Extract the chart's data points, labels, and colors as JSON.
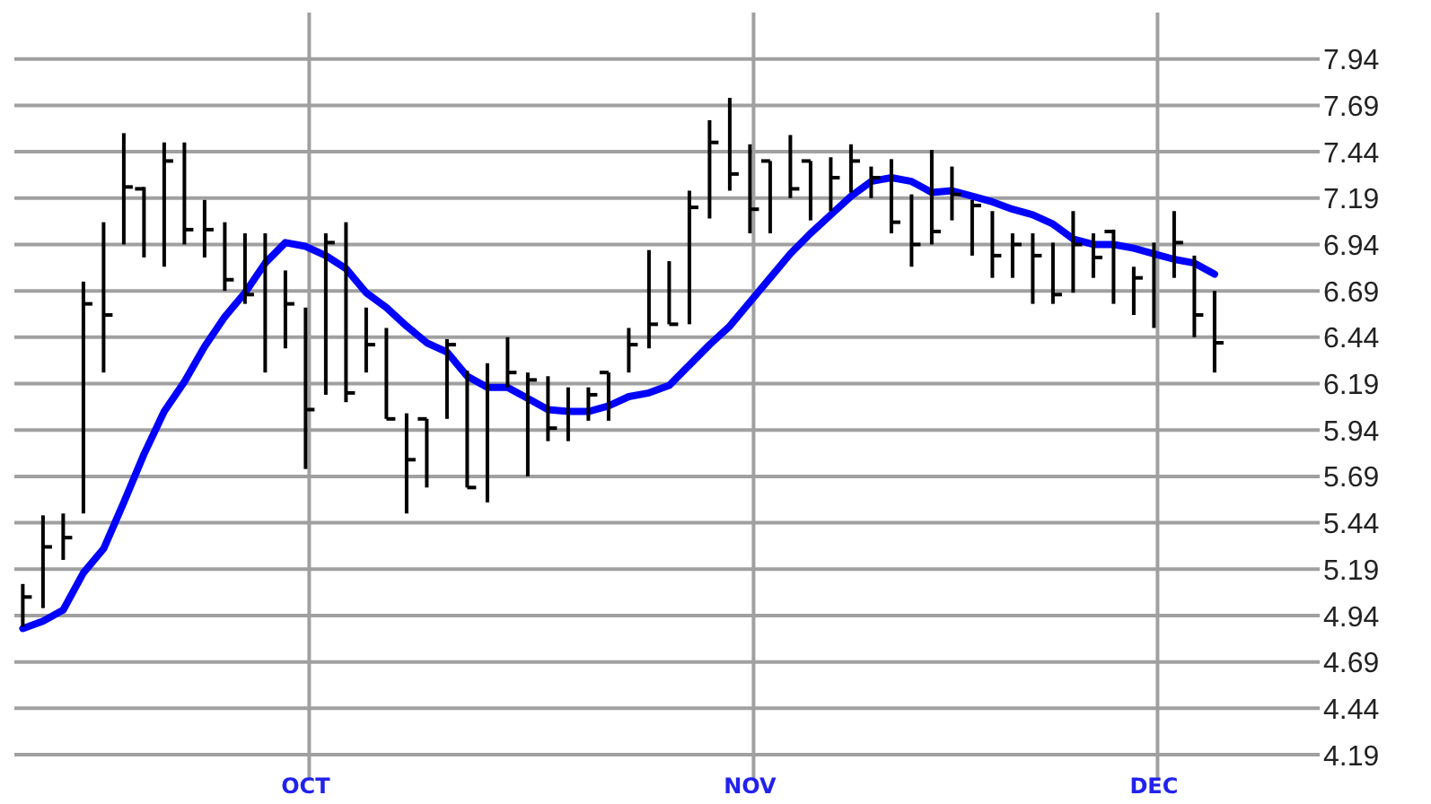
{
  "chart_data": {
    "type": "bar",
    "categories": [
      null,
      null,
      null,
      null,
      null,
      null,
      null,
      null,
      null,
      null,
      null,
      null,
      null,
      null,
      "OCT",
      null,
      null,
      null,
      null,
      null,
      null,
      null,
      null,
      null,
      null,
      null,
      null,
      null,
      null,
      null,
      null,
      null,
      null,
      null,
      null,
      null,
      "NOV",
      null,
      null,
      null,
      null,
      null,
      null,
      null,
      null,
      null,
      null,
      null,
      null,
      null,
      null,
      null,
      null,
      null,
      null,
      null,
      "DEC",
      null,
      null,
      null
    ],
    "series": [
      {
        "color": "#000000",
        "values": [
          0.23,
          0.5,
          0.25,
          1.25,
          0.81,
          0.6,
          0.38,
          0.67,
          0.55,
          0.31,
          0.37,
          0.38,
          0.75,
          0.42,
          0.87,
          0.87,
          0.97,
          0.35,
          0.49,
          0.54,
          0.37,
          0.43,
          0.63,
          0.75,
          0.27,
          0.56,
          0.35,
          0.29,
          0.18,
          0.26,
          0.24,
          0.53,
          0.34,
          0.72,
          0.53,
          0.5,
          0.48,
          0.39,
          0.34,
          0.32,
          0.29,
          0.26,
          0.17,
          0.4,
          0.39,
          0.51,
          0.29,
          0.3,
          0.36,
          0.24,
          0.38,
          0.33,
          0.44,
          0.24,
          0.4,
          0.26,
          0.46,
          0.36,
          0.44,
          0.44
        ],
        "base": [
          4.88,
          4.98,
          5.24,
          5.49,
          6.25,
          6.94,
          6.87,
          6.82,
          6.94,
          6.87,
          6.69,
          6.62,
          6.25,
          6.38,
          5.73,
          6.13,
          6.09,
          6.25,
          6.0,
          5.49,
          5.63,
          6.0,
          5.63,
          5.55,
          6.17,
          5.69,
          5.88,
          5.88,
          5.99,
          5.99,
          6.25,
          6.38,
          6.51,
          6.51,
          7.08,
          7.23,
          7.0,
          7.0,
          7.19,
          7.07,
          7.12,
          7.22,
          7.19,
          7.0,
          6.82,
          6.94,
          7.07,
          6.88,
          6.76,
          6.76,
          6.62,
          6.62,
          6.68,
          6.76,
          6.62,
          6.56,
          6.49,
          6.76,
          6.44,
          6.25
        ]
      },
      {
        "type": "scatter",
        "color": "#000000",
        "marker": "square",
        "values": [
          5.04,
          5.31,
          5.36,
          6.62,
          6.56,
          7.25,
          null,
          7.39,
          7.02,
          7.02,
          6.75,
          6.67,
          null,
          6.62,
          6.05,
          6.95,
          6.14,
          6.4,
          6.0,
          5.78,
          null,
          6.4,
          5.63,
          null,
          6.25,
          6.21,
          5.95,
          null,
          6.13,
          null,
          6.4,
          6.51,
          6.51,
          7.14,
          7.49,
          7.32,
          7.13,
          null,
          7.24,
          null,
          7.3,
          7.39,
          7.3,
          7.06,
          6.94,
          7.01,
          7.21,
          7.15,
          6.88,
          6.94,
          6.88,
          6.67,
          6.94,
          6.87,
          null,
          6.76,
          null,
          6.95,
          6.56,
          6.41
        ]
      },
      {
        "type": "scatter",
        "color": "#000000",
        "marker": "square",
        "values": [
          null,
          null,
          null,
          null,
          null,
          null,
          7.24,
          null,
          null,
          null,
          null,
          null,
          null,
          null,
          null,
          null,
          null,
          null,
          null,
          null,
          6.0,
          null,
          null,
          null,
          null,
          null,
          null,
          null,
          null,
          6.25,
          null,
          null,
          null,
          null,
          null,
          null,
          null,
          7.39,
          null,
          7.39,
          null,
          null,
          null,
          null,
          null,
          null,
          null,
          null,
          null,
          null,
          null,
          null,
          null,
          null,
          7.01,
          null,
          null,
          null,
          null,
          null
        ]
      },
      {
        "type": "line",
        "color": "#0000ff",
        "marker": "none",
        "line_style": "solid",
        "values": [
          4.87,
          4.91,
          4.97,
          5.17,
          5.3,
          5.55,
          5.81,
          6.04,
          6.2,
          6.39,
          6.55,
          6.68,
          6.84,
          6.95,
          6.93,
          6.88,
          6.81,
          6.68,
          6.6,
          6.5,
          6.41,
          6.36,
          6.23,
          6.17,
          6.17,
          6.11,
          6.05,
          6.04,
          6.04,
          6.07,
          6.12,
          6.14,
          6.18,
          6.29,
          6.4,
          6.5,
          6.63,
          6.76,
          6.89,
          7.0,
          7.1,
          7.2,
          7.28,
          7.3,
          7.28,
          7.22,
          7.23,
          7.2,
          7.17,
          7.13,
          7.1,
          7.05,
          6.97,
          6.94,
          6.94,
          6.92,
          6.89,
          6.86,
          6.84,
          6.78
        ]
      }
    ],
    "ylim": [
      4.05,
      8.19
    ],
    "yticks": [
      4.19,
      4.44,
      4.69,
      4.94,
      5.19,
      5.44,
      5.69,
      5.94,
      6.19,
      6.44,
      6.69,
      6.94,
      7.19,
      7.44,
      7.69,
      7.94
    ],
    "grid": true
  }
}
